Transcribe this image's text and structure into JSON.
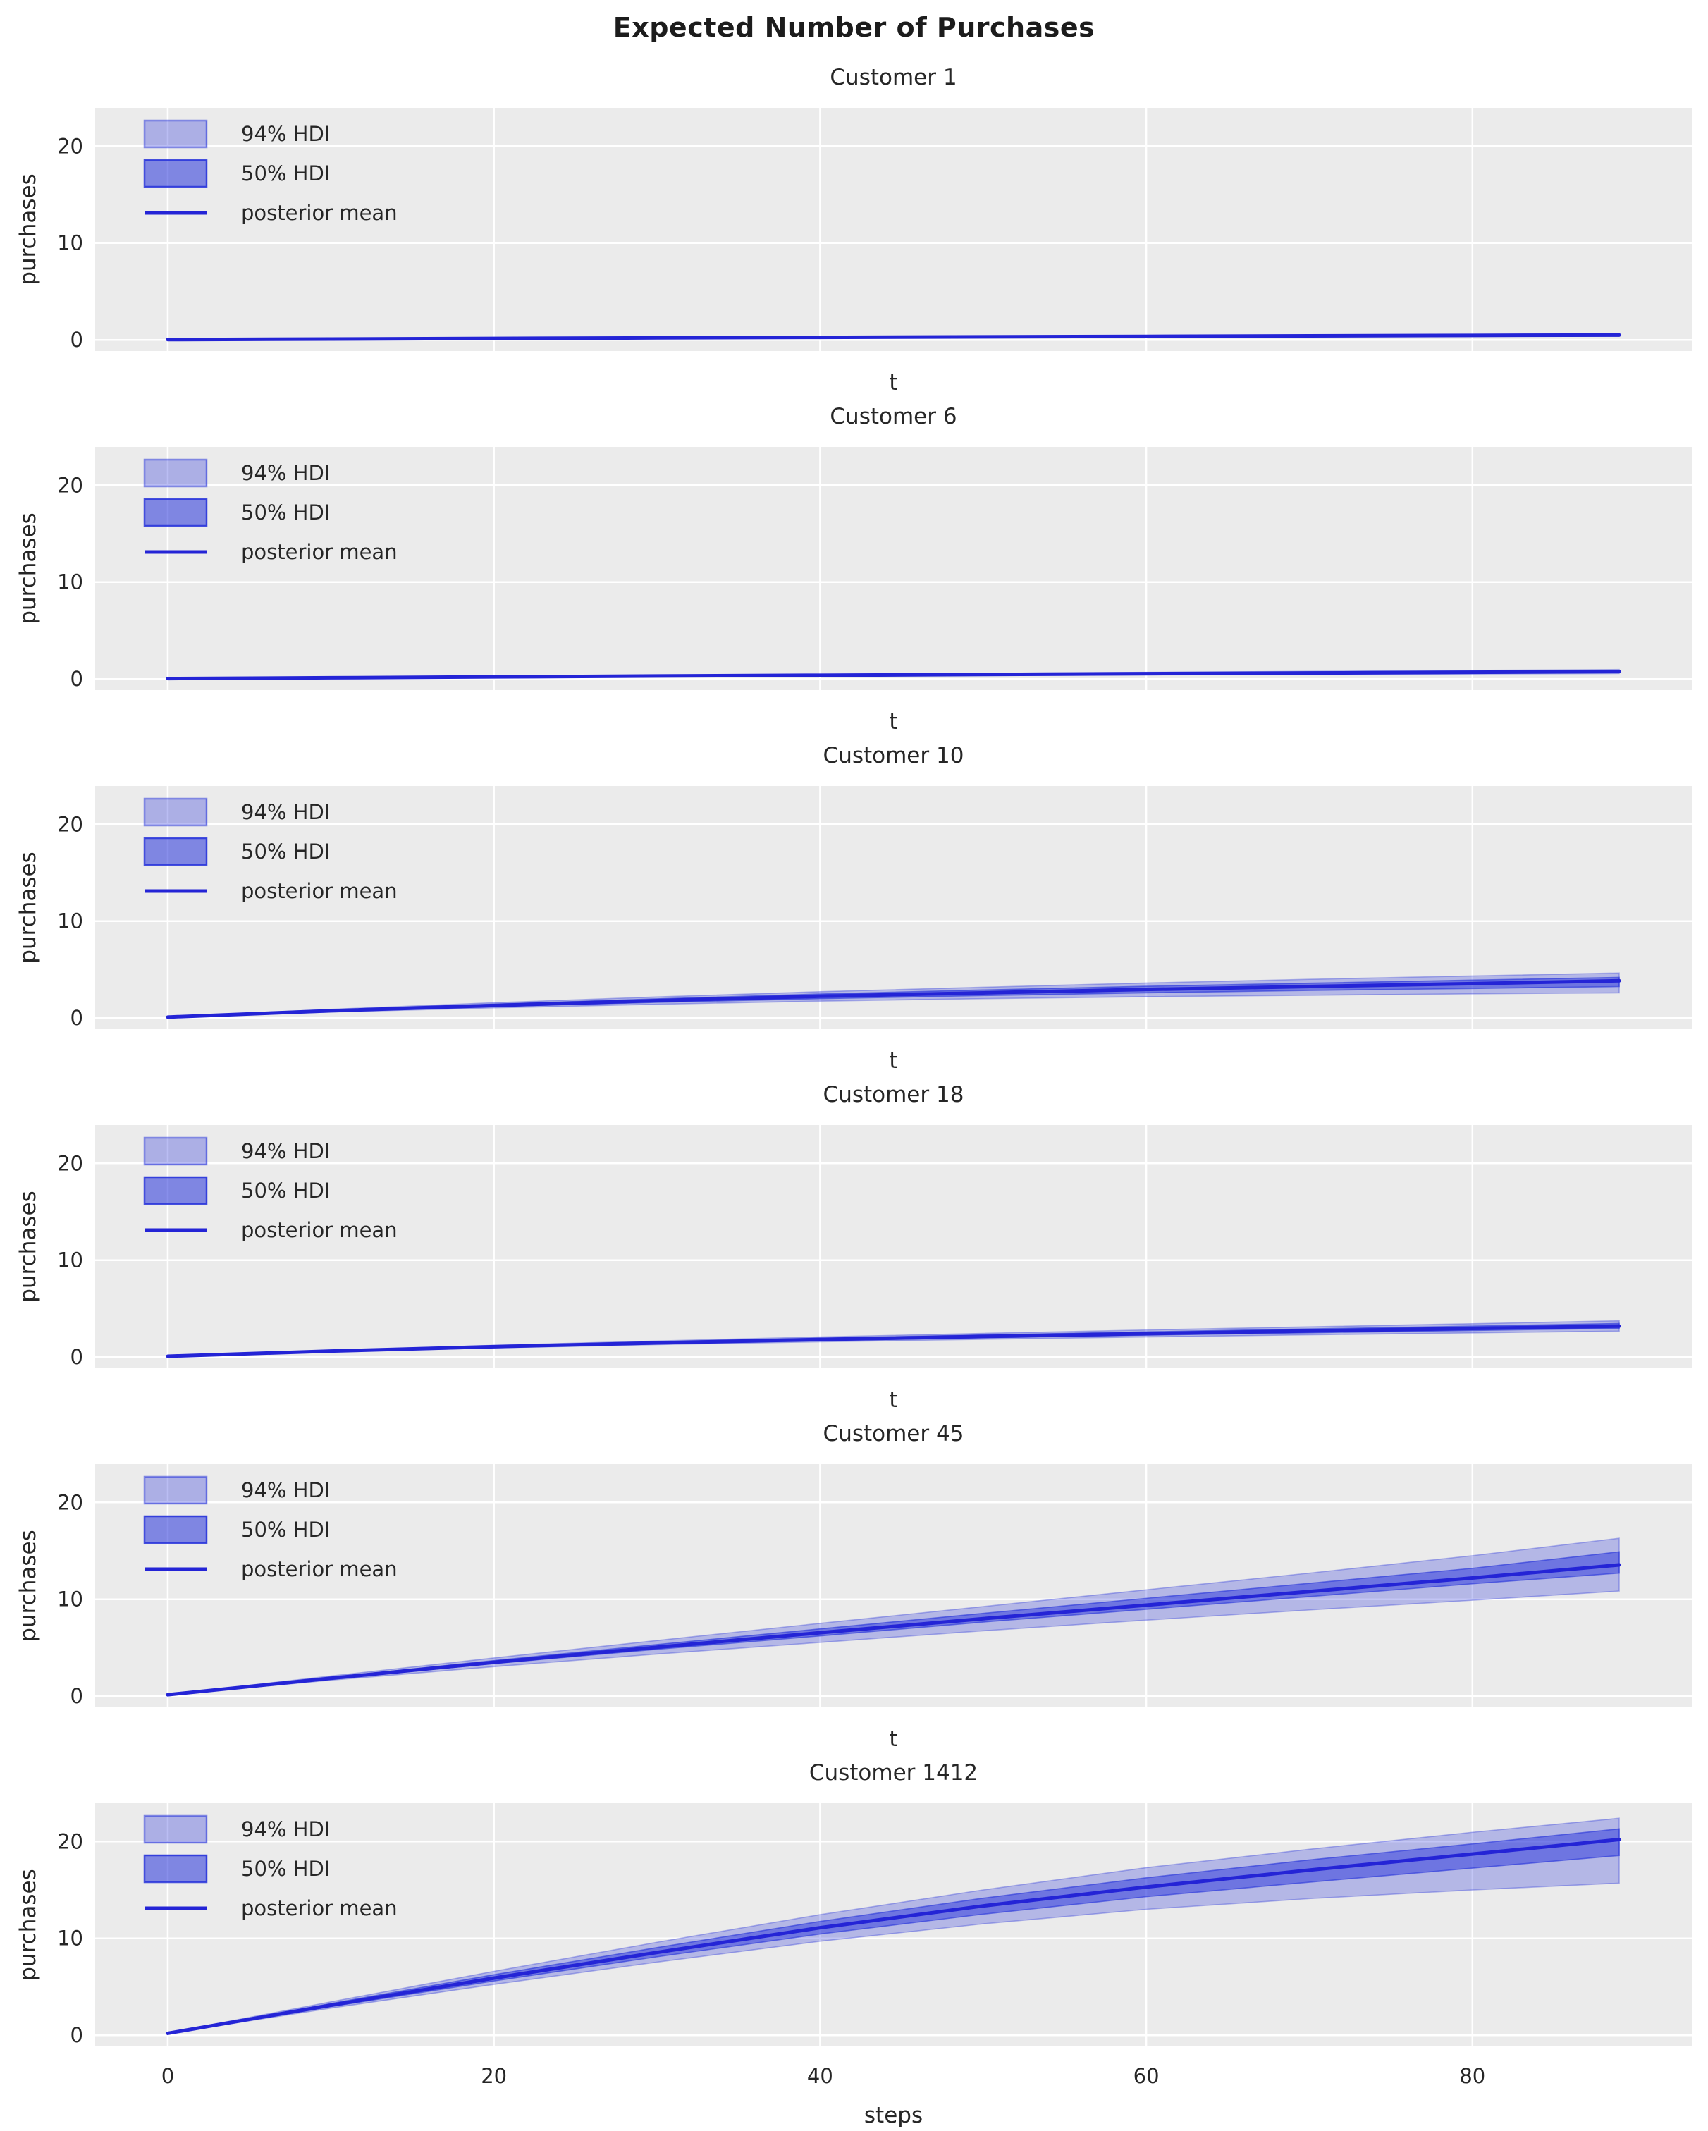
{
  "figure_title": "Expected Number of Purchases",
  "style": {
    "accent": "#2733db",
    "line_color": "#2424d6",
    "axes_bg": "#ebebeb",
    "grid_color": "#ffffff",
    "text_color": "#262626",
    "title_color": "#1c1c1c"
  },
  "legend": {
    "hdi94_label": "94% HDI",
    "hdi50_label": "50% HDI",
    "mean_label": "posterior mean"
  },
  "axes": {
    "ylabel": "purchases",
    "yticks": [
      0,
      10,
      20
    ],
    "xticks": [
      0,
      20,
      40,
      60,
      80
    ],
    "xlim": [
      -4.45,
      93.45
    ],
    "ylim": [
      -1.15,
      23.95
    ]
  },
  "chart_data": [
    {
      "type": "line",
      "title": "Customer 1",
      "xlabel": "t",
      "ylabel": "purchases",
      "show_xticklabels": false,
      "x": [
        0,
        10,
        20,
        30,
        40,
        50,
        60,
        70,
        80,
        89
      ],
      "mean": [
        0.03,
        0.09,
        0.15,
        0.21,
        0.26,
        0.31,
        0.36,
        0.41,
        0.46,
        0.5
      ],
      "hdi94_lower": [
        0.02,
        0.07,
        0.12,
        0.17,
        0.21,
        0.25,
        0.29,
        0.33,
        0.36,
        0.39
      ],
      "hdi94_upper": [
        0.04,
        0.11,
        0.19,
        0.26,
        0.32,
        0.38,
        0.44,
        0.5,
        0.56,
        0.62
      ],
      "hdi50_lower": [
        0.03,
        0.08,
        0.14,
        0.19,
        0.24,
        0.28,
        0.32,
        0.37,
        0.41,
        0.44
      ],
      "hdi50_upper": [
        0.03,
        0.1,
        0.17,
        0.23,
        0.29,
        0.34,
        0.4,
        0.45,
        0.5,
        0.56
      ]
    },
    {
      "type": "line",
      "title": "Customer 6",
      "xlabel": "t",
      "ylabel": "purchases",
      "show_xticklabels": false,
      "x": [
        0,
        10,
        20,
        30,
        40,
        50,
        60,
        70,
        80,
        89
      ],
      "mean": [
        0.04,
        0.13,
        0.22,
        0.31,
        0.39,
        0.47,
        0.55,
        0.62,
        0.7,
        0.77
      ],
      "hdi94_lower": [
        0.03,
        0.1,
        0.17,
        0.24,
        0.3,
        0.36,
        0.42,
        0.47,
        0.52,
        0.57
      ],
      "hdi94_upper": [
        0.05,
        0.16,
        0.28,
        0.39,
        0.49,
        0.59,
        0.69,
        0.79,
        0.89,
        0.98
      ],
      "hdi50_lower": [
        0.035,
        0.11,
        0.19,
        0.27,
        0.34,
        0.41,
        0.47,
        0.54,
        0.6,
        0.66
      ],
      "hdi50_upper": [
        0.045,
        0.145,
        0.25,
        0.35,
        0.44,
        0.53,
        0.61,
        0.7,
        0.78,
        0.87
      ]
    },
    {
      "type": "line",
      "title": "Customer 10",
      "xlabel": "t",
      "ylabel": "purchases",
      "show_xticklabels": false,
      "x": [
        0,
        10,
        20,
        30,
        40,
        50,
        60,
        70,
        80,
        89
      ],
      "mean": [
        0.1,
        0.75,
        1.3,
        1.8,
        2.25,
        2.6,
        2.95,
        3.25,
        3.55,
        3.85
      ],
      "hdi94_lower": [
        0.08,
        0.62,
        1.05,
        1.42,
        1.75,
        2.0,
        2.2,
        2.35,
        2.5,
        2.6
      ],
      "hdi94_upper": [
        0.12,
        0.9,
        1.58,
        2.18,
        2.72,
        3.18,
        3.62,
        4.0,
        4.35,
        4.65
      ],
      "hdi50_lower": [
        0.09,
        0.69,
        1.18,
        1.62,
        2.0,
        2.32,
        2.6,
        2.85,
        3.05,
        3.25
      ],
      "hdi50_upper": [
        0.11,
        0.82,
        1.44,
        1.98,
        2.48,
        2.9,
        3.28,
        3.6,
        3.92,
        4.2
      ]
    },
    {
      "type": "line",
      "title": "Customer 18",
      "xlabel": "t",
      "ylabel": "purchases",
      "show_xticklabels": false,
      "x": [
        0,
        10,
        20,
        30,
        40,
        50,
        60,
        70,
        80,
        89
      ],
      "mean": [
        0.09,
        0.62,
        1.08,
        1.47,
        1.82,
        2.13,
        2.42,
        2.7,
        2.96,
        3.2
      ],
      "hdi94_lower": [
        0.08,
        0.55,
        0.95,
        1.29,
        1.58,
        1.84,
        2.08,
        2.3,
        2.5,
        2.68
      ],
      "hdi94_upper": [
        0.1,
        0.7,
        1.22,
        1.67,
        2.08,
        2.45,
        2.8,
        3.13,
        3.45,
        3.75
      ],
      "hdi50_lower": [
        0.085,
        0.58,
        1.01,
        1.37,
        1.7,
        1.99,
        2.26,
        2.51,
        2.75,
        2.97
      ],
      "hdi50_upper": [
        0.095,
        0.66,
        1.15,
        1.57,
        1.95,
        2.29,
        2.61,
        2.91,
        3.2,
        3.47
      ]
    },
    {
      "type": "line",
      "title": "Customer 45",
      "xlabel": "t",
      "ylabel": "purchases",
      "show_xticklabels": false,
      "x": [
        0,
        10,
        20,
        30,
        40,
        50,
        60,
        70,
        80,
        89
      ],
      "mean": [
        0.15,
        1.85,
        3.5,
        5.05,
        6.55,
        8.0,
        9.4,
        10.8,
        12.2,
        13.55
      ],
      "hdi94_lower": [
        0.12,
        1.65,
        3.05,
        4.35,
        5.55,
        6.75,
        7.85,
        8.9,
        9.9,
        10.85
      ],
      "hdi94_upper": [
        0.18,
        2.08,
        3.95,
        5.75,
        7.52,
        9.25,
        10.98,
        12.7,
        14.5,
        16.3
      ],
      "hdi50_lower": [
        0.14,
        1.78,
        3.36,
        4.84,
        6.22,
        7.65,
        8.97,
        10.28,
        11.6,
        12.7
      ],
      "hdi50_upper": [
        0.16,
        1.95,
        3.68,
        5.33,
        6.95,
        8.55,
        10.1,
        11.65,
        13.2,
        14.9
      ]
    },
    {
      "type": "line",
      "title": "Customer 1412",
      "xlabel": "steps",
      "ylabel": "purchases",
      "show_xticklabels": true,
      "x": [
        0,
        10,
        20,
        30,
        40,
        50,
        60,
        70,
        80,
        89
      ],
      "mean": [
        0.2,
        3.1,
        5.9,
        8.55,
        11.1,
        13.35,
        15.3,
        17.05,
        18.7,
        20.2
      ],
      "hdi94_lower": [
        0.17,
        2.8,
        5.25,
        7.55,
        9.7,
        11.5,
        13.0,
        14.1,
        15.0,
        15.7
      ],
      "hdi94_upper": [
        0.23,
        3.45,
        6.6,
        9.6,
        12.45,
        15.0,
        17.3,
        19.2,
        20.95,
        22.4
      ],
      "hdi50_lower": [
        0.18,
        2.95,
        5.6,
        8.1,
        10.45,
        12.5,
        14.3,
        15.8,
        17.25,
        18.55
      ],
      "hdi50_upper": [
        0.22,
        3.28,
        6.25,
        9.05,
        11.75,
        14.15,
        16.25,
        18.1,
        19.75,
        21.3
      ]
    }
  ]
}
